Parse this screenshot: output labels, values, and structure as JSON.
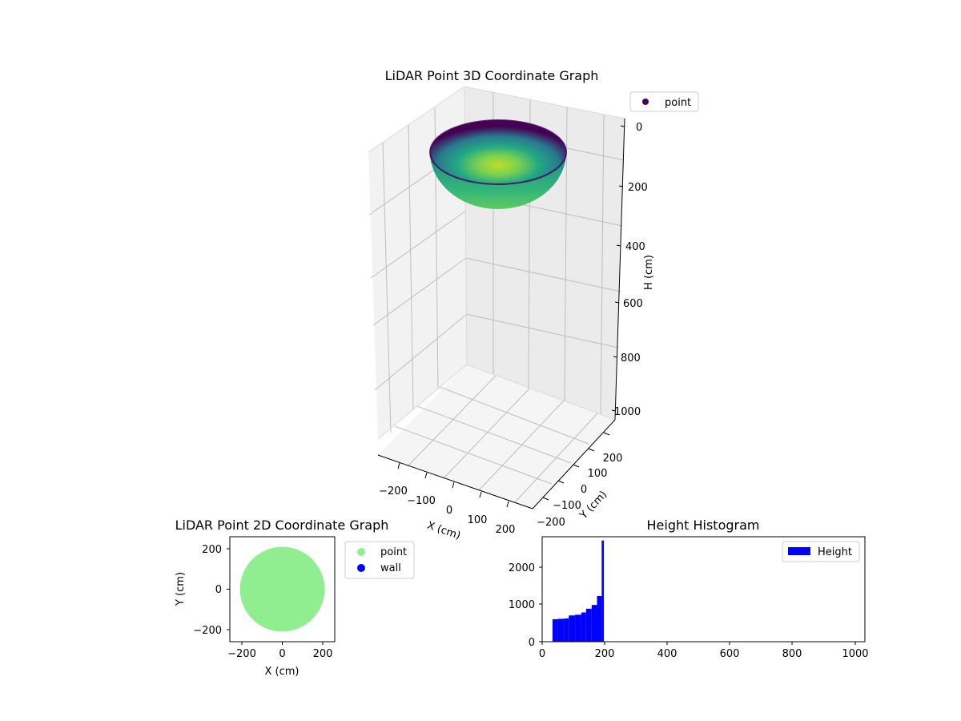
{
  "chart_data": [
    {
      "type": "scatter",
      "title": "LiDAR Point 3D Coordinate Graph",
      "xlabel": "X (cm)",
      "ylabel": "Y (cm)",
      "zlabel": "H (cm)",
      "xlim": [
        -250,
        250
      ],
      "ylim": [
        -250,
        250
      ],
      "zlim": [
        0,
        1050
      ],
      "z_inverted": true,
      "x_ticks": [
        "−200",
        "−100",
        "0",
        "100",
        "200"
      ],
      "y_ticks": [
        "−200",
        "−100",
        "0",
        "100",
        "200"
      ],
      "z_ticks": [
        "0",
        "200",
        "400",
        "600",
        "800",
        "1000"
      ],
      "legend": [
        {
          "label": "point",
          "color": "#440154"
        }
      ],
      "legend_position": "top-right",
      "shape": "hemispherical bowl of points, radius 210 cm, opening at H 0, bottom at about H 210 cm",
      "colormap": "viridis",
      "grid": true
    },
    {
      "type": "scatter",
      "title": "LiDAR Point 2D Coordinate Graph",
      "xlabel": "X (cm)",
      "ylabel": "Y (cm)",
      "xlim": [
        -260,
        260
      ],
      "ylim": [
        -260,
        260
      ],
      "x_ticks": [
        "−200",
        "0",
        "200"
      ],
      "y_ticks": [
        "−200",
        "0",
        "200"
      ],
      "legend": [
        {
          "label": "point",
          "color": "#90ee90"
        },
        {
          "label": "wall",
          "color": "#0000ff"
        }
      ],
      "legend_position": "outside-right",
      "disc_radius": 210,
      "grid": false
    },
    {
      "type": "bar",
      "title": "Height Histogram",
      "xlabel": "",
      "ylabel": "",
      "xlim": [
        0,
        1030
      ],
      "ylim": [
        0,
        2800
      ],
      "x_ticks": [
        "0",
        "200",
        "400",
        "600",
        "800",
        "1000"
      ],
      "y_ticks": [
        "0",
        "1000",
        "2000"
      ],
      "legend": [
        {
          "label": "Height",
          "color": "#0000ff"
        }
      ],
      "legend_position": "top-right",
      "bins": [
        {
          "x0": 33,
          "x1": 50,
          "count": 600
        },
        {
          "x0": 50,
          "x1": 70,
          "count": 610
        },
        {
          "x0": 70,
          "x1": 85,
          "count": 620
        },
        {
          "x0": 85,
          "x1": 105,
          "count": 700
        },
        {
          "x0": 105,
          "x1": 125,
          "count": 720
        },
        {
          "x0": 125,
          "x1": 140,
          "count": 780
        },
        {
          "x0": 140,
          "x1": 158,
          "count": 880
        },
        {
          "x0": 158,
          "x1": 175,
          "count": 980
        },
        {
          "x0": 175,
          "x1": 190,
          "count": 1220
        },
        {
          "x0": 190,
          "x1": 197,
          "count": 2700
        }
      ],
      "grid": false
    }
  ]
}
